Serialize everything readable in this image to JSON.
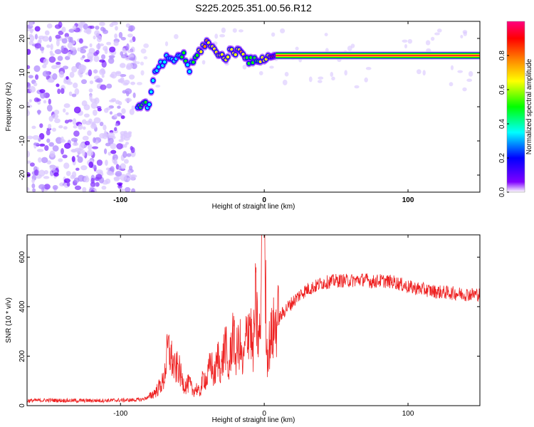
{
  "title": "S225.2025.351.00.56.R12",
  "chart_data": [
    {
      "type": "heatmap",
      "name": "spectrogram",
      "xlabel": "Height of straight line (km)",
      "ylabel": "Frequency (Hz)",
      "xlim": [
        -165,
        150
      ],
      "ylim": [
        -25,
        25
      ],
      "xticks": [
        -100,
        0,
        100
      ],
      "xtick_labels": [
        "-100",
        "0",
        "100"
      ],
      "yticks": [
        -20,
        -10,
        0,
        10,
        20
      ],
      "ytick_labels": [
        "-20",
        "-10",
        "0",
        "10",
        "20"
      ],
      "grid": false,
      "colorbar": {
        "label": "Normalized spectral amplitude",
        "range": [
          0,
          1
        ],
        "ticks": [
          0,
          0.2,
          0.4,
          0.6,
          0.8
        ],
        "tick_labels": [
          "0.0",
          "0.2",
          "0.4",
          "0.6",
          "0.8"
        ],
        "colors": [
          "#ffffff",
          "#7f00ff",
          "#0000ff",
          "#00ffff",
          "#00ff00",
          "#ffff00",
          "#ff8000",
          "#ff0000",
          "#ff0080"
        ]
      },
      "noise_region_x": [
        -165,
        -90
      ],
      "ridge": {
        "x": [
          -88,
          -85,
          -80,
          -76,
          -72,
          -68,
          -64,
          -60,
          -56,
          -52,
          -48,
          -44,
          -40,
          -36,
          -32,
          -28,
          -24,
          -20,
          -16,
          -12,
          -8,
          -4,
          0,
          4,
          8,
          20,
          40,
          60,
          80,
          100,
          120,
          150
        ],
        "y": [
          0.5,
          0.8,
          0.5,
          10,
          12,
          14,
          13,
          15,
          15,
          11,
          14,
          17,
          19,
          17,
          16,
          14,
          16,
          16,
          17,
          14,
          13,
          14,
          14,
          14.5,
          15,
          15,
          15,
          15,
          15,
          15,
          15,
          15
        ],
        "amplitude": [
          0.35,
          0.5,
          0.3,
          0.25,
          0.3,
          0.3,
          0.35,
          0.3,
          0.4,
          0.3,
          0.45,
          0.6,
          0.7,
          0.55,
          0.6,
          0.6,
          0.65,
          0.55,
          0.7,
          0.45,
          0.4,
          0.5,
          0.55,
          0.7,
          0.95,
          0.95,
          0.95,
          0.95,
          0.95,
          0.95,
          0.95,
          0.95
        ]
      }
    },
    {
      "type": "line",
      "name": "snr",
      "xlabel": "Height of straight line (km)",
      "ylabel": "SNR (10 * v/v)",
      "xlim": [
        -165,
        150
      ],
      "ylim": [
        0,
        690
      ],
      "xticks": [
        -100,
        0,
        100
      ],
      "xtick_labels": [
        "-100",
        "0",
        "100"
      ],
      "yticks": [
        0,
        200,
        400,
        600
      ],
      "ytick_labels": [
        "0",
        "200",
        "400",
        "600"
      ],
      "grid": false,
      "line_color": "#ee2222",
      "series": [
        {
          "x": [
            -165,
            -150,
            -130,
            -110,
            -100,
            -90,
            -85,
            -80,
            -75,
            -70,
            -67,
            -65,
            -62,
            -60,
            -57,
            -55,
            -52,
            -50,
            -47,
            -45,
            -42,
            -40,
            -37,
            -35,
            -32,
            -30,
            -27,
            -25,
            -22,
            -20,
            -17,
            -15,
            -12,
            -10,
            -8,
            -6,
            -4,
            -2,
            0,
            2,
            4,
            6,
            8,
            10,
            15,
            20,
            25,
            30,
            35,
            40,
            50,
            60,
            70,
            75,
            80,
            90,
            100,
            110,
            120,
            130,
            140,
            150
          ],
          "y": [
            20,
            22,
            20,
            21,
            22,
            23,
            25,
            35,
            60,
            100,
            230,
            200,
            140,
            160,
            100,
            80,
            90,
            60,
            70,
            50,
            120,
            100,
            180,
            110,
            200,
            140,
            260,
            120,
            300,
            200,
            260,
            150,
            300,
            350,
            200,
            420,
            250,
            350,
            680,
            200,
            260,
            300,
            330,
            350,
            390,
            420,
            450,
            470,
            480,
            495,
            505,
            505,
            510,
            500,
            505,
            500,
            480,
            470,
            460,
            455,
            450,
            450
          ]
        }
      ]
    }
  ]
}
